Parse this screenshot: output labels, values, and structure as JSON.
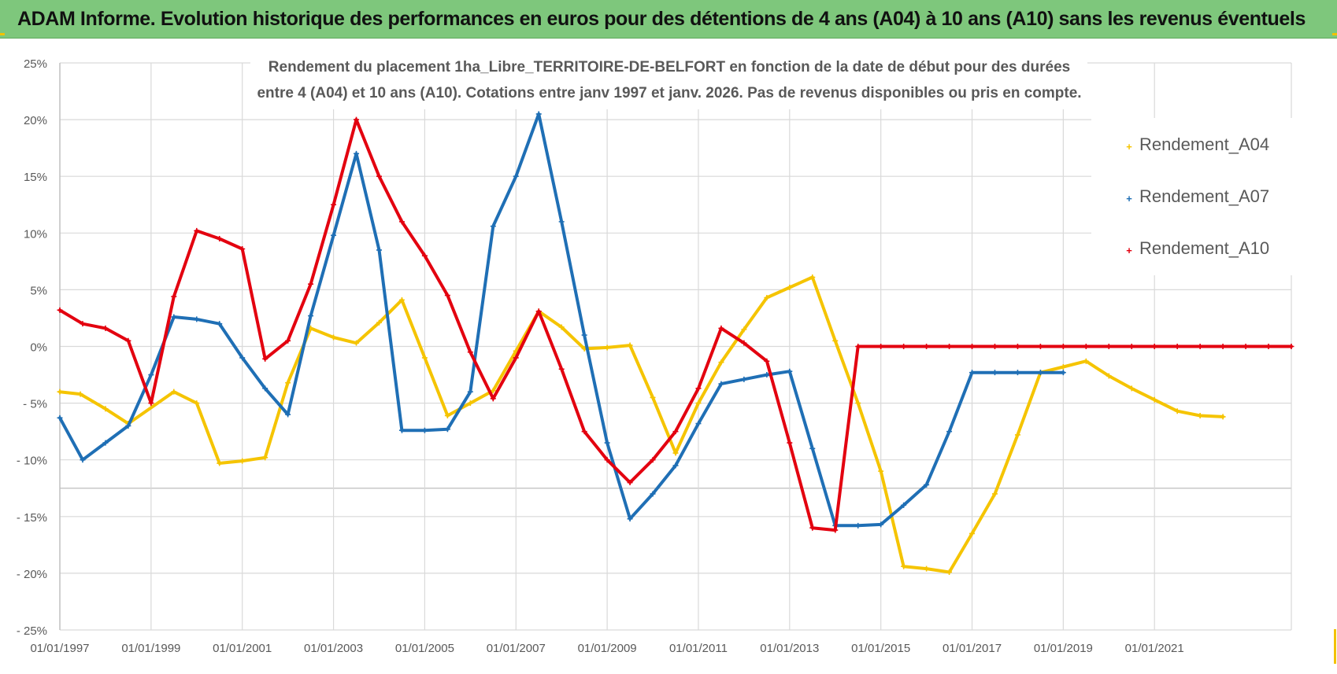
{
  "banner": {
    "title": "ADAM Informe. Evolution historique des performances en euros pour des détentions de 4 ans (A04) à 10 ans (A10) sans les revenus éventuels"
  },
  "colors": {
    "banner_bg": "#7ec77c",
    "a04": "#f5c400",
    "a07": "#1f6fb5",
    "a10": "#e3000f",
    "grid": "#d9d9d9",
    "text": "#595959"
  },
  "chart_data": {
    "type": "scatter",
    "title_lines": [
      "Rendement du placement 1ha_Libre_TERRITOIRE-DE-BELFORT en fonction de la date de début pour des durées",
      "entre 4 (A04) et 10 ans (A10).  Cotations entre janv 1997 et janv. 2026. Pas de revenus disponibles ou pris en compte."
    ],
    "xlabel": "",
    "ylabel": "",
    "x_range": [
      1997.0,
      2024.0
    ],
    "ylim": [
      -25,
      25
    ],
    "y_ticks": [
      {
        "value": 25,
        "label": "25%"
      },
      {
        "value": 20,
        "label": "20%"
      },
      {
        "value": 15,
        "label": "15%"
      },
      {
        "value": 10,
        "label": "10%"
      },
      {
        "value": 5,
        "label": "5%"
      },
      {
        "value": 0,
        "label": "0%"
      },
      {
        "value": -5,
        "label": "- 5%"
      },
      {
        "value": -10,
        "label": "- 10%"
      },
      {
        "value": -15,
        "label": "- 15%"
      },
      {
        "value": -20,
        "label": "- 20%"
      },
      {
        "value": -25,
        "label": "- 25%"
      }
    ],
    "x_ticks": [
      {
        "value": 1997,
        "label": "01/01/1997"
      },
      {
        "value": 1999,
        "label": "01/01/1999"
      },
      {
        "value": 2001,
        "label": "01/01/2001"
      },
      {
        "value": 2003,
        "label": "01/01/2003"
      },
      {
        "value": 2005,
        "label": "01/01/2005"
      },
      {
        "value": 2007,
        "label": "01/01/2007"
      },
      {
        "value": 2009,
        "label": "01/01/2009"
      },
      {
        "value": 2011,
        "label": "01/01/2011"
      },
      {
        "value": 2013,
        "label": "01/01/2013"
      },
      {
        "value": 2015,
        "label": "01/01/2015"
      },
      {
        "value": 2017,
        "label": "01/01/2017"
      },
      {
        "value": 2019,
        "label": "01/01/2019"
      },
      {
        "value": 2021,
        "label": "01/01/2021"
      }
    ],
    "grid": true,
    "legend_position": "top-right",
    "series": [
      {
        "name": "Rendement_A04",
        "color": "#f5c400",
        "x": [
          1997.0,
          1997.45,
          1998.0,
          1998.5,
          1999.5,
          2000.0,
          2000.5,
          2001.0,
          2001.5,
          2002.0,
          2002.5,
          2003.0,
          2003.5,
          2004.0,
          2004.5,
          2005.0,
          2005.5,
          2006.0,
          2006.5,
          2007.0,
          2007.5,
          2008.0,
          2008.5,
          2009.0,
          2009.5,
          2010.0,
          2010.5,
          2011.0,
          2011.5,
          2012.0,
          2012.5,
          2013.0,
          2013.5,
          2014.0,
          2014.5,
          2015.0,
          2015.5,
          2016.0,
          2016.5,
          2017.0,
          2017.5,
          2018.0,
          2018.5,
          2019.0,
          2019.5,
          2020.0,
          2020.5,
          2021.0,
          2021.5,
          2022.0,
          2022.5
        ],
        "y": [
          -4.0,
          -4.2,
          -5.5,
          -6.8,
          -4.0,
          -5.0,
          -10.3,
          -10.1,
          -9.8,
          -3.2,
          1.6,
          0.8,
          0.3,
          2.1,
          4.1,
          -1.0,
          -6.1,
          -5.0,
          -3.9,
          -0.4,
          3.1,
          1.7,
          -0.2,
          -0.1,
          0.1,
          -4.5,
          -9.4,
          -5.0,
          -1.4,
          1.5,
          4.3,
          5.2,
          6.1,
          0.5,
          -5.0,
          -11.0,
          -19.4,
          -19.6,
          -19.9,
          -16.5,
          -13.0,
          -7.8,
          -2.3,
          -1.8,
          -1.3,
          -2.6,
          -3.7,
          -4.7,
          -5.7,
          -6.1,
          -6.2
        ]
      },
      {
        "name": "Rendement_A07",
        "color": "#1f6fb5",
        "x": [
          1997.0,
          1997.5,
          1998.0,
          1998.5,
          1999.0,
          1999.5,
          2000.0,
          2000.5,
          2001.0,
          2001.5,
          2002.0,
          2002.5,
          2003.0,
          2003.5,
          2004.0,
          2004.5,
          2005.0,
          2005.5,
          2006.0,
          2006.5,
          2007.0,
          2007.5,
          2008.0,
          2008.5,
          2009.0,
          2009.5,
          2010.0,
          2010.5,
          2011.0,
          2011.5,
          2012.0,
          2012.5,
          2013.0,
          2013.5,
          2014.0,
          2014.5,
          2015.0,
          2015.5,
          2016.0,
          2016.5,
          2017.0,
          2017.5,
          2018.0,
          2018.5,
          2019.0
        ],
        "y": [
          -6.3,
          -10.0,
          -8.5,
          -7.0,
          -2.5,
          2.6,
          2.4,
          2.0,
          -1.0,
          -3.7,
          -6.0,
          2.7,
          9.8,
          17.0,
          8.5,
          -7.4,
          -7.4,
          -7.3,
          -4.0,
          10.6,
          15.0,
          20.5,
          11.0,
          1.0,
          -8.5,
          -15.2,
          -13.0,
          -10.5,
          -6.8,
          -3.3,
          -2.9,
          -2.5,
          -2.2,
          -9.0,
          -15.8,
          -15.8,
          -15.7,
          -14.0,
          -12.2,
          -7.5,
          -2.3,
          -2.3,
          -2.3,
          -2.3,
          -2.3
        ]
      },
      {
        "name": "Rendement_A10",
        "color": "#e3000f",
        "x": [
          1997.0,
          1997.5,
          1998.0,
          1998.5,
          1999.0,
          1999.5,
          2000.0,
          2000.5,
          2001.0,
          2001.5,
          2002.0,
          2002.5,
          2003.0,
          2003.5,
          2004.0,
          2004.5,
          2005.0,
          2005.5,
          2006.0,
          2006.5,
          2007.0,
          2007.5,
          2008.0,
          2008.5,
          2009.0,
          2009.5,
          2010.0,
          2010.5,
          2011.0,
          2011.5,
          2012.0,
          2012.5,
          2013.0,
          2013.5,
          2014.0,
          2014.5,
          2015.0,
          2015.5,
          2016.0,
          2016.5,
          2017.0,
          2017.5,
          2018.0,
          2018.5,
          2019.0,
          2019.5,
          2020.0,
          2020.5,
          2021.0,
          2021.5,
          2022.0,
          2022.5,
          2023.0,
          2023.5,
          2024.0
        ],
        "y": [
          3.2,
          2.0,
          1.6,
          0.5,
          -5.0,
          4.4,
          10.2,
          9.5,
          8.6,
          -1.1,
          0.5,
          5.5,
          12.5,
          20.0,
          15.0,
          11.0,
          8.0,
          4.5,
          -0.5,
          -4.6,
          -1.0,
          3.1,
          -2.0,
          -7.5,
          -10.0,
          -12.0,
          -10.0,
          -7.5,
          -3.7,
          1.6,
          0.3,
          -1.3,
          -8.5,
          -16.0,
          -16.2,
          0.0,
          0.0,
          0.0,
          0.0,
          0.0,
          0.0,
          0.0,
          0.0,
          0.0,
          0.0,
          0.0,
          0.0,
          0.0,
          0.0,
          0.0,
          0.0,
          0.0,
          0.0,
          0.0,
          0.0
        ]
      }
    ]
  }
}
